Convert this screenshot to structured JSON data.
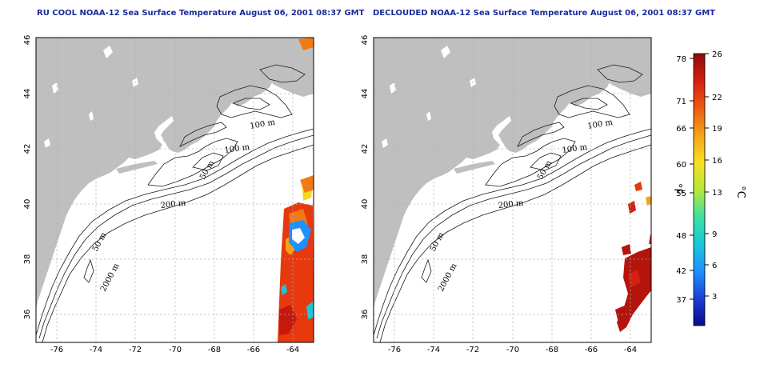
{
  "panels": [
    {
      "id": "left",
      "title": "RU COOL NOAA-12 Sea Surface Temperature August 06, 2001 08:37 GMT",
      "lon_ticks": [
        "-76",
        "-74",
        "-72",
        "-70",
        "-68",
        "-66",
        "-64"
      ],
      "lat_ticks": [
        "36",
        "38",
        "40",
        "42",
        "44",
        "46"
      ],
      "contour_labels": [
        "100 m",
        "100 m",
        "50 m",
        "200 m",
        "50 m",
        "2000 m"
      ]
    },
    {
      "id": "right",
      "title": "DECLOUDED NOAA-12 Sea Surface Temperature August 06, 2001 08:37 GMT",
      "lon_ticks": [
        "-76",
        "-74",
        "-72",
        "-70",
        "-68",
        "-66",
        "-64"
      ],
      "lat_ticks": [
        "36",
        "38",
        "40",
        "42",
        "44",
        "46"
      ],
      "contour_labels": [
        "100 m",
        "100 m",
        "50 m",
        "200 m",
        "50 m",
        "2000 m"
      ]
    }
  ],
  "colorbar": {
    "fahrenheit_ticks": [
      "78",
      "71",
      "66",
      "60",
      "55",
      "48",
      "42",
      "37"
    ],
    "celsius_ticks": [
      "26",
      "22",
      "19",
      "16",
      "13",
      "9",
      "6",
      "3"
    ],
    "left_unit": "°F",
    "right_unit": "°C",
    "colors": [
      "#0a0a8c",
      "#1a3fd6",
      "#1e90ff",
      "#17c8d8",
      "#3ee0a0",
      "#b8e83a",
      "#f7e020",
      "#f5a317",
      "#ee5a12",
      "#d42010",
      "#8c0a0a"
    ]
  },
  "colors": {
    "land": "#bfbfbf",
    "ocean": "#ffffff",
    "grid": "#b0b0b0",
    "title": "#1a2a9c"
  }
}
